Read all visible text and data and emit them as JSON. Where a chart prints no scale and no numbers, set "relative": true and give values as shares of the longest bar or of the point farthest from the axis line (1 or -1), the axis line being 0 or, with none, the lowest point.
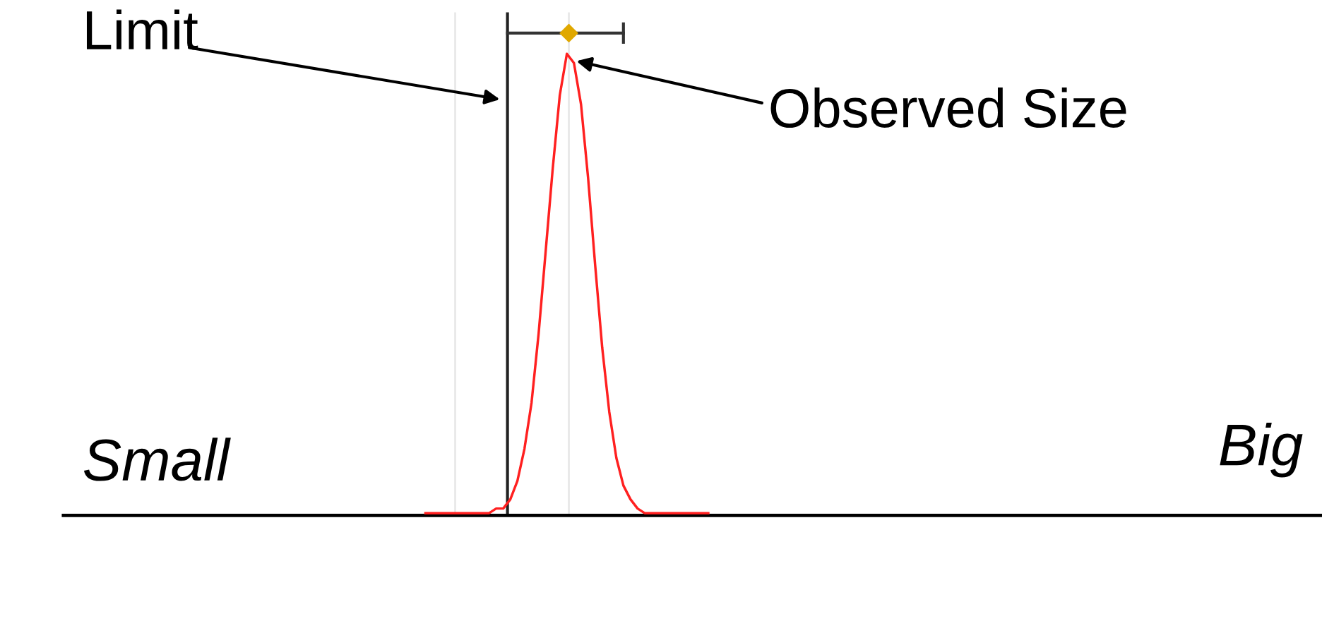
{
  "chart_data": {
    "type": "line",
    "relative": true,
    "grid": false,
    "categories": [
      null,
      null,
      null,
      null,
      null,
      null,
      null,
      null,
      null,
      null,
      null,
      null,
      null,
      null,
      null,
      null,
      null,
      null,
      null,
      null,
      null,
      null,
      null,
      null,
      null,
      null,
      null,
      null,
      null,
      null,
      null,
      null,
      null,
      null,
      null,
      null,
      null,
      null,
      null,
      null,
      null
    ],
    "series": [
      {
        "color": "#ff2020",
        "values": [
          0,
          0,
          0,
          0,
          0,
          0,
          0,
          0,
          0,
          0,
          0.01,
          0.01,
          0.03,
          0.07,
          0.14,
          0.24,
          0.39,
          0.57,
          0.75,
          0.91,
          1.0,
          0.98,
          0.89,
          0.73,
          0.54,
          0.36,
          0.22,
          0.12,
          0.06,
          0.03,
          0.01,
          0,
          0,
          0,
          0,
          0,
          0,
          0,
          0,
          0,
          0
        ]
      }
    ],
    "annotations": [
      "Limit",
      "Observed Size",
      "Small",
      "Big"
    ]
  }
}
